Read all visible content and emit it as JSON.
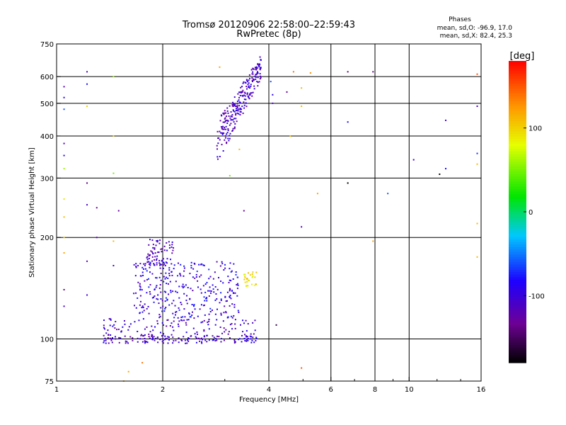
{
  "chart_data": {
    "type": "scatter",
    "title": "Tromsø 20120906 22:58:00–22:59:43",
    "subtitle": "RwPretec (8p)",
    "xlabel": "Frequency [MHz]",
    "ylabel": "Stationary phase Virtual Height [km]",
    "x_scale": "log",
    "y_scale": "log",
    "xlim": [
      1,
      16
    ],
    "ylim": [
      75,
      750
    ],
    "x_ticks": [
      1,
      2,
      4,
      6,
      8,
      10,
      16
    ],
    "x_tick_labels": [
      "1",
      "2",
      "4",
      "6",
      "8",
      "10",
      "16"
    ],
    "y_ticks": [
      75,
      100,
      200,
      300,
      400,
      500,
      600,
      750
    ],
    "y_tick_labels": [
      "75",
      "100",
      "200",
      "300",
      "400",
      "500",
      "600",
      "750"
    ],
    "grid": true,
    "phases_box": {
      "title": "Phases",
      "line1": "mean, sd,O: -96.9, 17.0",
      "line2": "mean, sd,X:  82.4, 25.3"
    },
    "colorbar": {
      "label": "[deg]",
      "range": [
        -180,
        180
      ],
      "ticks": [
        100,
        0,
        -100
      ],
      "tick_labels": [
        "100",
        "0",
        "-100"
      ],
      "colormap": "rainbow"
    },
    "clusters": [
      {
        "name": "F-trace",
        "fmin": 2.85,
        "fmax": 3.8,
        "hmin": 390,
        "hmax": 640,
        "phase": -110,
        "count": 240
      },
      {
        "name": "E-sporadic-lower",
        "fmin": 1.35,
        "fmax": 3.7,
        "hmin": 93,
        "hmax": 115,
        "phase": -105,
        "count": 260
      },
      {
        "name": "E-region-spread",
        "fmin": 1.65,
        "fmax": 3.3,
        "hmin": 115,
        "hmax": 170,
        "phase": -95,
        "count": 320
      },
      {
        "name": "E-region-band",
        "fmin": 1.8,
        "fmax": 2.15,
        "hmin": 165,
        "hmax": 200,
        "phase": -110,
        "count": 70
      },
      {
        "name": "X-mode-patch",
        "fmin": 3.4,
        "fmax": 3.7,
        "hmin": 143,
        "hmax": 158,
        "phase": 90,
        "count": 30
      }
    ],
    "noise_points": [
      [
        1.05,
        560,
        -120
      ],
      [
        1.05,
        520,
        -90
      ],
      [
        1.05,
        480,
        -60
      ],
      [
        1.05,
        380,
        -110
      ],
      [
        1.05,
        350,
        -90
      ],
      [
        1.05,
        320,
        60
      ],
      [
        1.05,
        260,
        90
      ],
      [
        1.05,
        230,
        110
      ],
      [
        1.05,
        200,
        100
      ],
      [
        1.05,
        180,
        120
      ],
      [
        1.05,
        140,
        -140
      ],
      [
        1.05,
        125,
        -110
      ],
      [
        1.22,
        620,
        -110
      ],
      [
        1.22,
        570,
        -80
      ],
      [
        1.22,
        490,
        100
      ],
      [
        1.22,
        290,
        -140
      ],
      [
        1.22,
        250,
        -110
      ],
      [
        1.22,
        170,
        -120
      ],
      [
        1.22,
        135,
        -100
      ],
      [
        1.3,
        245,
        -130
      ],
      [
        1.3,
        200,
        -120
      ],
      [
        1.45,
        600,
        60
      ],
      [
        1.45,
        400,
        100
      ],
      [
        1.45,
        310,
        50
      ],
      [
        1.45,
        195,
        110
      ],
      [
        1.45,
        165,
        -100
      ],
      [
        1.5,
        240,
        -130
      ],
      [
        1.55,
        75,
        110
      ],
      [
        1.6,
        80,
        120
      ],
      [
        1.75,
        85,
        140
      ],
      [
        2.9,
        640,
        120
      ],
      [
        3.1,
        305,
        50
      ],
      [
        3.4,
        240,
        -130
      ],
      [
        3.3,
        365,
        110
      ],
      [
        4.05,
        580,
        -60
      ],
      [
        4.1,
        530,
        -90
      ],
      [
        4.1,
        500,
        -110
      ],
      [
        4.2,
        110,
        -160
      ],
      [
        4.5,
        540,
        -130
      ],
      [
        4.6,
        400,
        110
      ],
      [
        4.7,
        620,
        140
      ],
      [
        4.95,
        555,
        110
      ],
      [
        4.95,
        490,
        110
      ],
      [
        4.95,
        215,
        -110
      ],
      [
        4.95,
        82,
        150
      ],
      [
        5.25,
        615,
        130
      ],
      [
        5.5,
        270,
        120
      ],
      [
        6.7,
        620,
        -140
      ],
      [
        6.7,
        440,
        -80
      ],
      [
        6.7,
        290,
        -180
      ],
      [
        7.9,
        620,
        -130
      ],
      [
        7.9,
        195,
        120
      ],
      [
        8.7,
        270,
        -60
      ],
      [
        10.3,
        340,
        -100
      ],
      [
        12.2,
        308,
        -180
      ],
      [
        12.7,
        320,
        -80
      ],
      [
        12.7,
        445,
        -100
      ],
      [
        15.6,
        610,
        150
      ],
      [
        15.6,
        490,
        -110
      ],
      [
        15.6,
        355,
        -70
      ],
      [
        15.6,
        330,
        110
      ],
      [
        15.6,
        220,
        110
      ],
      [
        15.6,
        175,
        110
      ]
    ]
  }
}
